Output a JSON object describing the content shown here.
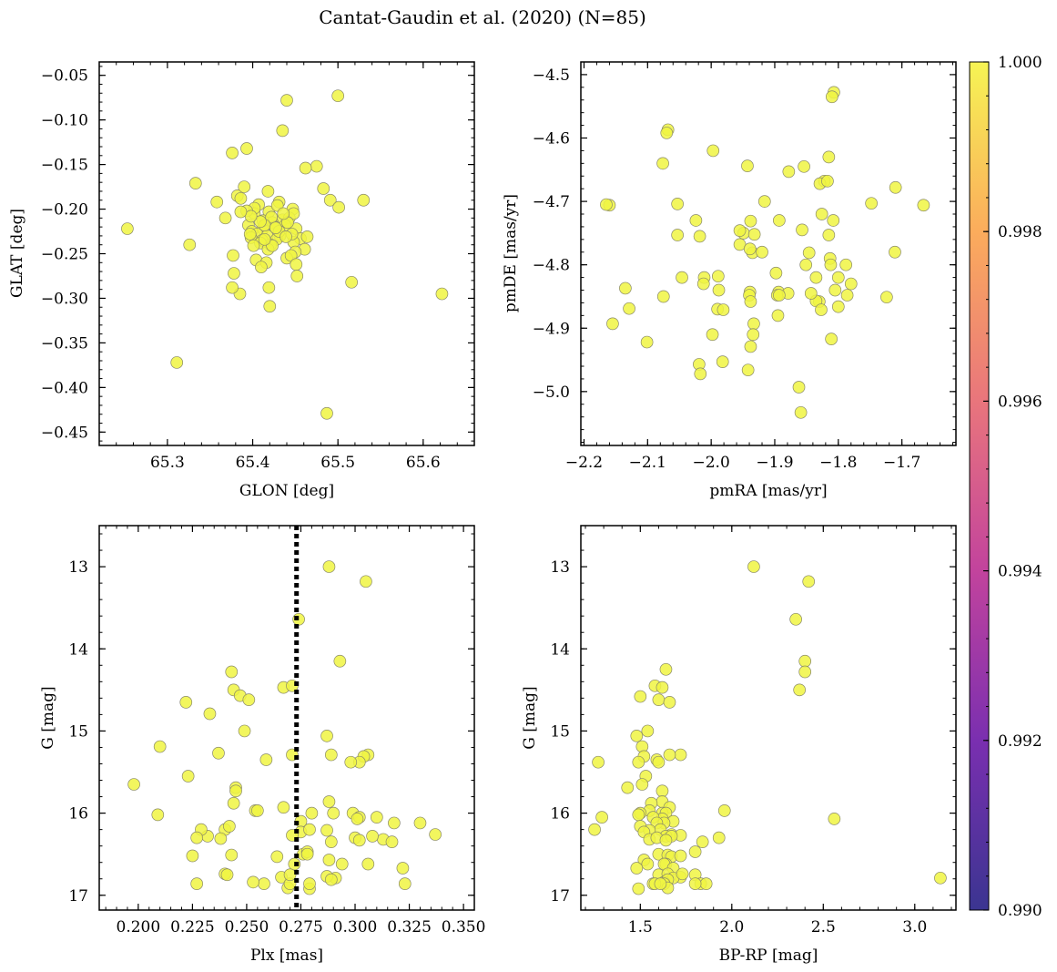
{
  "figure": {
    "title": "Cantat-Gaudin et al. (2020) (N=85)",
    "point_color": "#f0f542",
    "colorbar": {
      "range": [
        0.99,
        1.0
      ],
      "ticks": [
        "0.990",
        "0.992",
        "0.994",
        "0.996",
        "0.998",
        "1.000"
      ],
      "colormap": "plasma"
    }
  },
  "chart_data": [
    {
      "type": "scatter",
      "xlabel": "GLON [deg]",
      "ylabel": "GLAT [deg]",
      "xlim": [
        65.22,
        65.66
      ],
      "ylim": [
        -0.465,
        -0.035
      ],
      "xticks": [
        65.3,
        65.4,
        65.5,
        65.6
      ],
      "xtick_labels": [
        "65.3",
        "65.4",
        "65.5",
        "65.6"
      ],
      "yticks": [
        -0.05,
        -0.1,
        -0.15,
        -0.2,
        -0.25,
        -0.3,
        -0.35,
        -0.4,
        -0.45
      ],
      "ytick_labels": [
        "−0.05",
        "−0.10",
        "−0.15",
        "−0.20",
        "−0.25",
        "−0.30",
        "−0.35",
        "−0.40",
        "−0.45"
      ],
      "x": [
        65.5,
        65.44,
        65.435,
        65.393,
        65.376,
        65.475,
        65.462,
        65.333,
        65.382,
        65.39,
        65.418,
        65.483,
        65.358,
        65.407,
        65.431,
        65.491,
        65.53,
        65.253,
        65.501,
        65.368,
        65.402,
        65.419,
        65.447,
        65.395,
        65.435,
        65.423,
        65.443,
        65.412,
        65.399,
        65.426,
        65.438,
        65.451,
        65.405,
        65.417,
        65.456,
        65.432,
        65.398,
        65.448,
        65.411,
        65.464,
        65.428,
        65.421,
        65.409,
        65.401,
        65.326,
        65.461,
        65.45,
        65.377,
        65.44,
        65.404,
        65.445,
        65.418,
        65.451,
        65.416,
        65.41,
        65.452,
        65.397,
        65.429,
        65.448,
        65.441,
        65.402,
        65.412,
        65.378,
        65.422,
        65.385,
        65.436,
        65.414,
        65.516,
        65.376,
        65.386,
        65.42,
        65.311,
        65.622,
        65.487,
        65.393,
        65.446,
        65.409,
        65.431,
        65.423,
        65.414,
        65.427,
        65.419,
        65.398,
        65.439,
        65.386
      ],
      "y": [
        -0.073,
        -0.078,
        -0.112,
        -0.132,
        -0.137,
        -0.152,
        -0.154,
        -0.171,
        -0.185,
        -0.175,
        -0.18,
        -0.177,
        -0.192,
        -0.195,
        -0.192,
        -0.19,
        -0.19,
        -0.222,
        -0.198,
        -0.21,
        -0.205,
        -0.203,
        -0.2,
        -0.218,
        -0.212,
        -0.215,
        -0.21,
        -0.222,
        -0.225,
        -0.22,
        -0.218,
        -0.222,
        -0.228,
        -0.23,
        -0.233,
        -0.23,
        -0.232,
        -0.237,
        -0.235,
        -0.231,
        -0.234,
        -0.24,
        -0.238,
        -0.241,
        -0.24,
        -0.245,
        -0.248,
        -0.252,
        -0.255,
        -0.257,
        -0.252,
        -0.245,
        -0.262,
        -0.26,
        -0.265,
        -0.275,
        -0.228,
        -0.196,
        -0.205,
        -0.215,
        -0.199,
        -0.213,
        -0.272,
        -0.209,
        -0.295,
        -0.205,
        -0.218,
        -0.282,
        -0.288,
        -0.188,
        -0.309,
        -0.372,
        -0.295,
        -0.429,
        -0.202,
        -0.228,
        -0.214,
        -0.225,
        -0.241,
        -0.234,
        -0.221,
        -0.288,
        -0.208,
        -0.231,
        -0.203
      ]
    },
    {
      "type": "scatter",
      "xlabel": "pmRA [mas/yr]",
      "ylabel": "pmDE [mas/yr]",
      "xlim": [
        -2.205,
        -1.615
      ],
      "ylim": [
        -5.085,
        -4.48
      ],
      "xticks": [
        -2.2,
        -2.1,
        -2.0,
        -1.9,
        -1.8,
        -1.7
      ],
      "xtick_labels": [
        "−2.2",
        "−2.1",
        "−2.0",
        "−1.9",
        "−1.8",
        "−1.7"
      ],
      "yticks": [
        -4.5,
        -4.6,
        -4.7,
        -4.8,
        -4.9,
        -5.0
      ],
      "ytick_labels": [
        "−4.5",
        "−4.6",
        "−4.7",
        "−4.8",
        "−4.9",
        "−5.0"
      ],
      "x": [
        -1.807,
        -1.81,
        -2.068,
        -2.07,
        -2.076,
        -1.997,
        -1.815,
        -2.053,
        -2.16,
        -1.71,
        -1.822,
        -1.829,
        -1.748,
        -1.666,
        -1.826,
        -1.893,
        -1.938,
        -1.857,
        -1.808,
        -2.053,
        -1.949,
        -2.024,
        -2.018,
        -1.815,
        -1.955,
        -1.955,
        -1.935,
        -1.813,
        -1.939,
        -1.989,
        -1.92,
        -1.711,
        -2.046,
        -1.846,
        -1.812,
        -1.788,
        -1.851,
        -1.8,
        -1.835,
        -1.83,
        -1.786,
        -2.011,
        -1.898,
        -2.135,
        -2.075,
        -2.012,
        -1.78,
        -1.894,
        -1.939,
        -1.94,
        -1.724,
        -1.835,
        -1.988,
        -2.129,
        -1.895,
        -2.155,
        -1.99,
        -1.8,
        -1.896,
        -1.879,
        -1.981,
        -1.938,
        -1.933,
        -1.982,
        -2.101,
        -1.827,
        -1.998,
        -2.019,
        -1.934,
        -1.942,
        -2.017,
        -1.862,
        -1.859,
        -1.854,
        -1.943,
        -1.878,
        -2.165,
        -1.932,
        -1.893,
        -1.805,
        -1.811,
        -1.916,
        -1.817,
        -1.938,
        -1.843
      ],
      "y": [
        -4.528,
        -4.535,
        -4.587,
        -4.592,
        -4.64,
        -4.62,
        -4.63,
        -4.704,
        -4.706,
        -4.678,
        -4.668,
        -4.672,
        -4.703,
        -4.706,
        -4.72,
        -4.73,
        -4.731,
        -4.745,
        -4.73,
        -4.753,
        -4.75,
        -4.73,
        -4.755,
        -4.753,
        -4.768,
        -4.746,
        -4.781,
        -4.79,
        -4.775,
        -4.818,
        -4.78,
        -4.78,
        -4.82,
        -4.781,
        -4.8,
        -4.8,
        -4.8,
        -4.82,
        -4.82,
        -4.858,
        -4.848,
        -4.82,
        -4.813,
        -4.837,
        -4.85,
        -4.83,
        -4.83,
        -4.843,
        -4.843,
        -4.848,
        -4.851,
        -4.857,
        -4.84,
        -4.869,
        -4.88,
        -4.893,
        -4.87,
        -4.866,
        -4.848,
        -4.845,
        -4.871,
        -4.858,
        -4.893,
        -4.953,
        -4.922,
        -4.871,
        -4.91,
        -4.957,
        -4.91,
        -4.966,
        -4.972,
        -4.993,
        -5.033,
        -4.645,
        -4.644,
        -4.653,
        -4.705,
        -4.752,
        -4.848,
        -4.84,
        -4.917,
        -4.7,
        -4.668,
        -4.929,
        -4.845
      ]
    },
    {
      "type": "scatter",
      "xlabel": "Plx [mas]",
      "ylabel": "G [mag]",
      "xlim": [
        0.182,
        0.355
      ],
      "ylim": [
        17.18,
        12.5
      ],
      "vline_x": 0.273,
      "xticks": [
        0.2,
        0.225,
        0.25,
        0.275,
        0.3,
        0.325,
        0.35
      ],
      "xtick_labels": [
        "0.200",
        "0.225",
        "0.250",
        "0.275",
        "0.300",
        "0.325",
        "0.350"
      ],
      "yticks": [
        13,
        14,
        15,
        16,
        17
      ],
      "ytick_labels": [
        "13",
        "14",
        "15",
        "16",
        "17"
      ],
      "x": [
        0.288,
        0.305,
        0.274,
        0.293,
        0.243,
        0.267,
        0.271,
        0.244,
        0.247,
        0.251,
        0.222,
        0.233,
        0.287,
        0.249,
        0.289,
        0.306,
        0.21,
        0.304,
        0.302,
        0.271,
        0.237,
        0.259,
        0.298,
        0.223,
        0.198,
        0.245,
        0.288,
        0.244,
        0.209,
        0.254,
        0.255,
        0.245,
        0.267,
        0.29,
        0.299,
        0.302,
        0.28,
        0.31,
        0.318,
        0.33,
        0.275,
        0.287,
        0.301,
        0.24,
        0.275,
        0.279,
        0.232,
        0.271,
        0.229,
        0.242,
        0.227,
        0.313,
        0.317,
        0.276,
        0.337,
        0.308,
        0.243,
        0.264,
        0.3,
        0.302,
        0.323,
        0.289,
        0.272,
        0.278,
        0.288,
        0.294,
        0.291,
        0.24,
        0.279,
        0.227,
        0.287,
        0.306,
        0.258,
        0.322,
        0.225,
        0.238,
        0.266,
        0.241,
        0.253,
        0.278,
        0.289,
        0.269,
        0.27,
        0.27,
        0.279
      ],
      "y": [
        13.0,
        13.18,
        13.64,
        14.15,
        14.28,
        14.47,
        14.45,
        14.5,
        14.57,
        14.62,
        14.65,
        14.79,
        15.06,
        15.0,
        15.29,
        15.29,
        15.19,
        15.31,
        15.38,
        15.29,
        15.27,
        15.35,
        15.38,
        15.55,
        15.65,
        15.69,
        15.86,
        15.88,
        16.02,
        15.97,
        15.97,
        15.73,
        15.93,
        16.0,
        16.0,
        16.05,
        16.0,
        16.05,
        16.12,
        16.12,
        16.1,
        16.21,
        16.07,
        16.2,
        16.23,
        16.2,
        16.28,
        16.27,
        16.2,
        16.16,
        16.3,
        16.32,
        16.35,
        16.5,
        16.26,
        16.28,
        16.51,
        16.53,
        16.3,
        16.33,
        16.86,
        16.35,
        16.62,
        16.47,
        16.57,
        16.62,
        16.79,
        16.74,
        16.92,
        16.86,
        16.77,
        16.62,
        16.86,
        16.67,
        16.52,
        16.31,
        16.78,
        16.75,
        16.84,
        16.5,
        16.81,
        16.91,
        16.86,
        16.75,
        16.86
      ]
    },
    {
      "type": "scatter",
      "xlabel": "BP-RP [mag]",
      "ylabel": "G [mag]",
      "xlim": [
        1.175,
        3.225
      ],
      "ylim": [
        17.18,
        12.5
      ],
      "xticks": [
        1.5,
        2.0,
        2.5,
        3.0
      ],
      "xtick_labels": [
        "1.5",
        "2.0",
        "2.5",
        "3.0"
      ],
      "yticks": [
        13,
        14,
        15,
        16,
        17
      ],
      "ytick_labels": [
        "13",
        "14",
        "15",
        "16",
        "17"
      ],
      "x": [
        2.12,
        2.42,
        2.35,
        2.4,
        1.64,
        2.4,
        1.58,
        1.62,
        2.37,
        1.5,
        1.6,
        1.66,
        1.54,
        1.48,
        1.51,
        1.72,
        1.52,
        1.66,
        1.59,
        1.49,
        1.6,
        1.27,
        1.53,
        1.51,
        1.62,
        1.43,
        1.62,
        1.56,
        1.29,
        1.66,
        1.96,
        1.55,
        1.5,
        1.62,
        1.64,
        1.49,
        1.62,
        1.57,
        1.68,
        1.63,
        1.59,
        1.25,
        1.5,
        1.61,
        1.55,
        1.52,
        1.67,
        1.72,
        1.64,
        1.93,
        1.67,
        1.84,
        1.55,
        1.8,
        2.56,
        1.59,
        1.64,
        1.6,
        1.65,
        1.67,
        1.72,
        1.52,
        1.64,
        1.54,
        1.63,
        1.48,
        1.68,
        1.6,
        1.65,
        1.8,
        1.72,
        1.68,
        1.83,
        1.73,
        1.86,
        1.8,
        3.14,
        1.63,
        1.65,
        1.57,
        1.63,
        1.58,
        1.65,
        1.49,
        1.61
      ],
      "y": [
        13.0,
        13.18,
        13.64,
        14.15,
        14.25,
        14.28,
        14.45,
        14.47,
        14.5,
        14.58,
        14.62,
        14.65,
        15.0,
        15.06,
        15.19,
        15.29,
        15.31,
        15.29,
        15.35,
        15.38,
        15.38,
        15.38,
        15.55,
        15.65,
        15.73,
        15.69,
        15.86,
        15.88,
        16.05,
        15.93,
        15.97,
        15.97,
        16.0,
        16.0,
        16.0,
        16.02,
        16.07,
        16.05,
        16.1,
        16.12,
        16.12,
        16.2,
        16.16,
        16.2,
        16.21,
        16.23,
        16.26,
        16.27,
        16.28,
        16.3,
        16.28,
        16.35,
        16.32,
        16.47,
        16.07,
        16.3,
        16.33,
        16.5,
        16.51,
        16.53,
        16.52,
        16.57,
        16.62,
        16.62,
        16.62,
        16.67,
        16.67,
        16.75,
        16.74,
        16.75,
        16.78,
        16.79,
        16.86,
        16.74,
        16.86,
        16.86,
        16.79,
        16.84,
        16.81,
        16.86,
        16.86,
        16.86,
        16.91,
        16.92,
        16.86
      ]
    }
  ]
}
